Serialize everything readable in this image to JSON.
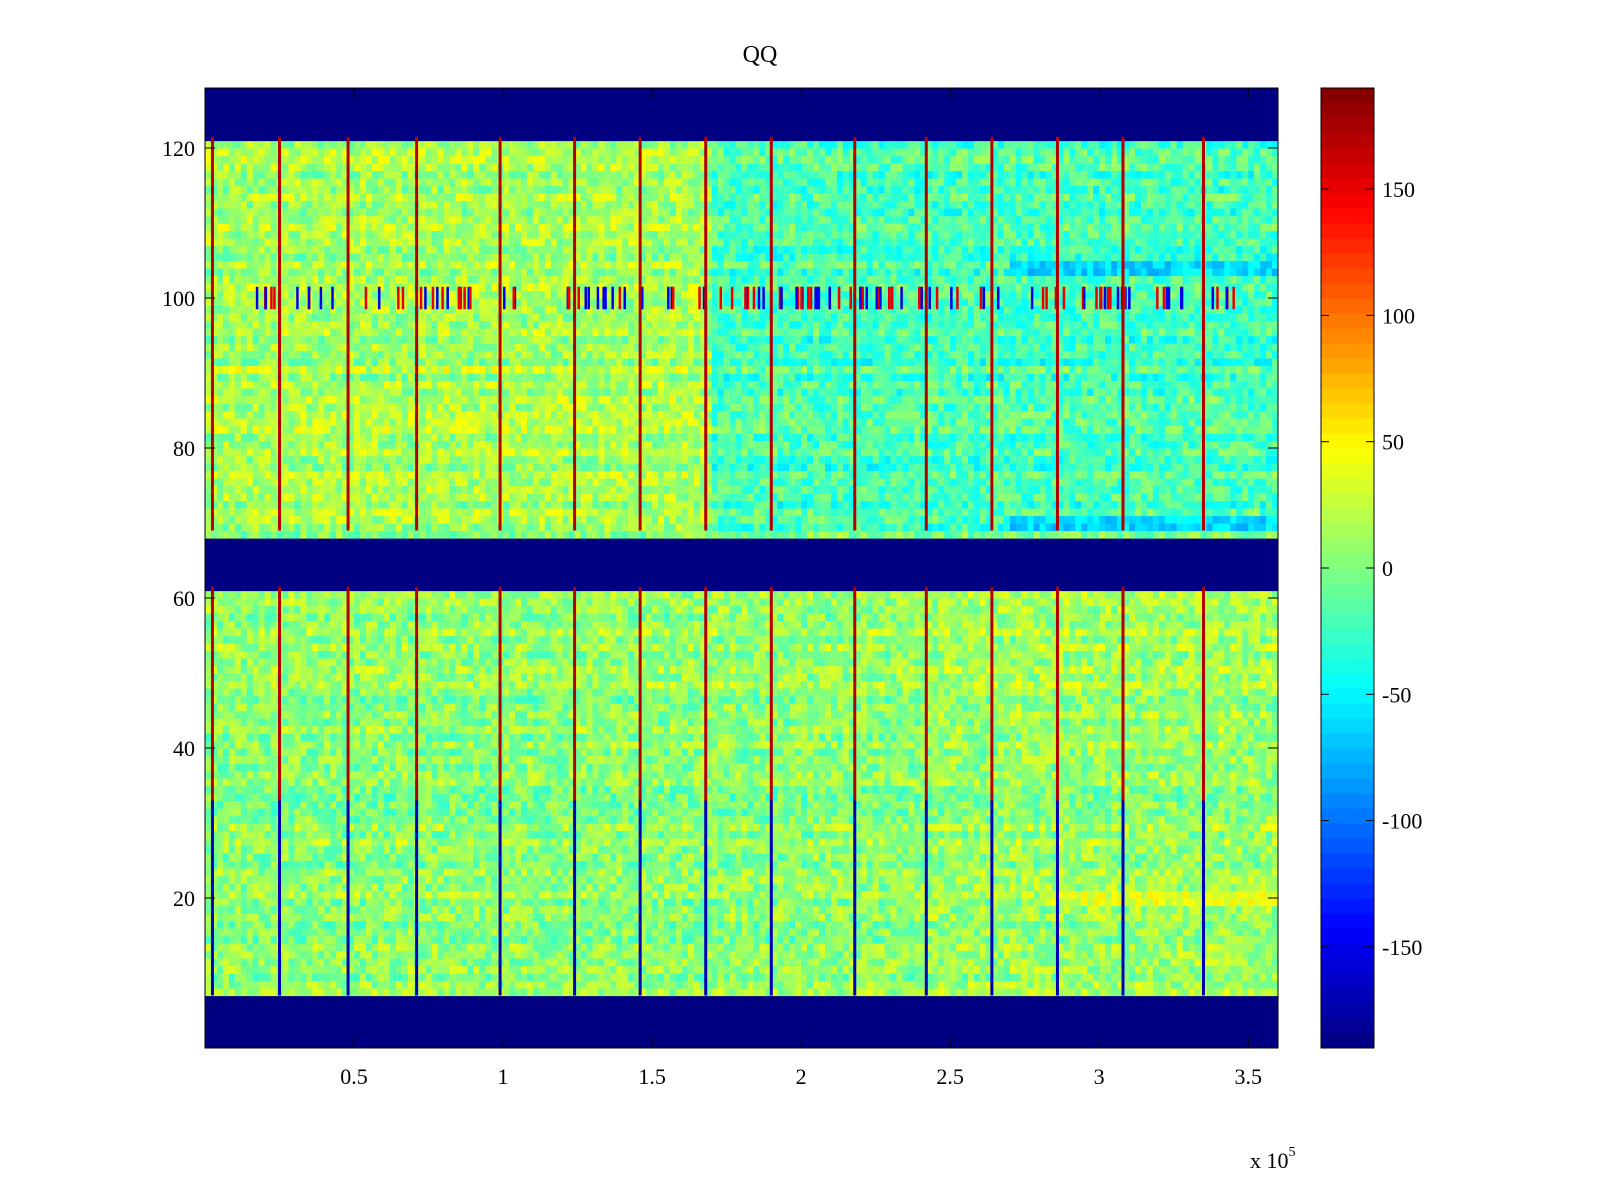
{
  "figure": {
    "title": "QQ",
    "x_exponent_base": "x 10",
    "x_exponent_power": "5"
  },
  "chart_data": {
    "type": "heatmap",
    "title": "QQ",
    "xlabel": "",
    "ylabel": "",
    "colormap": "jet",
    "xlim": [
      0,
      360000
    ],
    "ylim": [
      0,
      128
    ],
    "x_tick_values": [
      50000,
      100000,
      150000,
      200000,
      250000,
      300000,
      350000
    ],
    "x_tick_labels": [
      "0.5",
      "1",
      "1.5",
      "2",
      "2.5",
      "3",
      "3.5"
    ],
    "x_multiplier_label": "x 10^5",
    "y_tick_values": [
      20,
      40,
      60,
      80,
      100,
      120
    ],
    "y_tick_labels": [
      "20",
      "40",
      "60",
      "80",
      "100",
      "120"
    ],
    "color_range": [
      -190,
      190
    ],
    "colorbar_tick_values": [
      150,
      100,
      50,
      0,
      -50,
      -100,
      -150
    ],
    "colorbar_tick_labels": [
      "150",
      "100",
      "50",
      "0",
      "-50",
      "-100",
      "-150"
    ],
    "empty_row_bands": [
      {
        "from": 0,
        "to": 7,
        "value": -190
      },
      {
        "from": 61.5,
        "to": 68.5,
        "value": -190
      },
      {
        "from": 121.5,
        "to": 128,
        "value": -190
      }
    ],
    "vertical_spike_x": [
      2500,
      25000,
      48000,
      71000,
      99000,
      124000,
      146000,
      168000,
      190000,
      218000,
      242000,
      264000,
      286000,
      308000,
      335000
    ],
    "regions": [
      {
        "rows": [
          69,
          121
        ],
        "x_range": [
          0,
          170000
        ],
        "mean_value": 15
      },
      {
        "rows": [
          69,
          121
        ],
        "x_range": [
          170000,
          360000
        ],
        "mean_value": -20
      },
      {
        "rows": [
          7,
          61
        ],
        "x_range": [
          0,
          240000
        ],
        "mean_value": 5
      },
      {
        "rows": [
          7,
          61
        ],
        "x_range": [
          240000,
          360000
        ],
        "mean_value": 10
      }
    ],
    "notable_rows": [
      {
        "row": 100,
        "pattern": "intermittent high/low spikes across x"
      },
      {
        "row": 20,
        "x_range": [
          280000,
          360000
        ],
        "mean_value": 35
      },
      {
        "row": 104,
        "x_range": [
          270000,
          360000
        ],
        "mean_value": -60
      },
      {
        "row": 70,
        "x_range": [
          270000,
          360000
        ],
        "mean_value": -60
      }
    ],
    "grid": false,
    "colorbar": "right"
  }
}
